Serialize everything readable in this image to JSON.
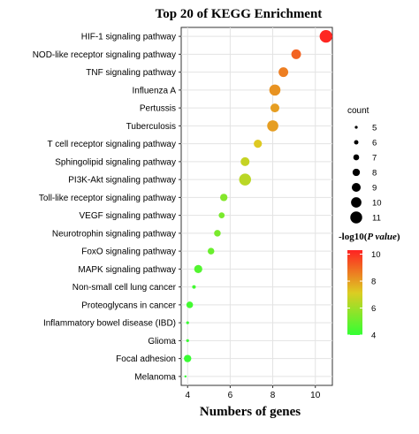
{
  "chart_data": {
    "type": "scatter",
    "title": "Top 20 of KEGG Enrichment",
    "xlabel": "Numbers of genes",
    "ylabel": "",
    "xlim": [
      3.7,
      10.8
    ],
    "xticks": [
      4,
      6,
      8,
      10
    ],
    "grid": true,
    "points": [
      {
        "term": "HIF-1 signaling pathway",
        "count": 10.5,
        "size": 11,
        "log10p": 10.2
      },
      {
        "term": "NOD-like receptor signaling pathway",
        "count": 9.1,
        "size": 9,
        "log10p": 9.1
      },
      {
        "term": "TNF signaling pathway",
        "count": 8.5,
        "size": 9,
        "log10p": 8.6
      },
      {
        "term": "Influenza A",
        "count": 8.1,
        "size": 10,
        "log10p": 8.2
      },
      {
        "term": "Pertussis",
        "count": 8.1,
        "size": 8.5,
        "log10p": 8.0
      },
      {
        "term": "Tuberculosis",
        "count": 8.0,
        "size": 10,
        "log10p": 8.0
      },
      {
        "term": "T cell receptor signaling pathway",
        "count": 7.3,
        "size": 8,
        "log10p": 7.2
      },
      {
        "term": "Sphingolipid signaling pathway",
        "count": 6.7,
        "size": 8.5,
        "log10p": 6.7
      },
      {
        "term": "PI3K-Akt signaling pathway",
        "count": 6.7,
        "size": 10.5,
        "log10p": 6.5
      },
      {
        "term": "Toll-like receptor signaling pathway",
        "count": 5.7,
        "size": 7.5,
        "log10p": 5.5
      },
      {
        "term": "VEGF signaling pathway",
        "count": 5.6,
        "size": 6.5,
        "log10p": 5.3
      },
      {
        "term": "Neurotrophin signaling pathway",
        "count": 5.4,
        "size": 7,
        "log10p": 5.3
      },
      {
        "term": "FoxO signaling pathway",
        "count": 5.1,
        "size": 7,
        "log10p": 5.0
      },
      {
        "term": "MAPK signaling pathway",
        "count": 4.5,
        "size": 8,
        "log10p": 4.6
      },
      {
        "term": "Non-small cell lung cancer",
        "count": 4.3,
        "size": 5,
        "log10p": 4.3
      },
      {
        "term": "Proteoglycans in cancer",
        "count": 4.1,
        "size": 7,
        "log10p": 4.3
      },
      {
        "term": "Inflammatory bowel disease (IBD)",
        "count": 4.0,
        "size": 4.5,
        "log10p": 4.1
      },
      {
        "term": "Glioma",
        "count": 4.0,
        "size": 4.5,
        "log10p": 4.1
      },
      {
        "term": "Focal adhesion",
        "count": 4.0,
        "size": 7.5,
        "log10p": 4.1
      },
      {
        "term": "Melanoma",
        "count": 3.9,
        "size": 4,
        "log10p": 4.0
      }
    ],
    "size_legend": {
      "title": "count",
      "values": [
        5,
        6,
        7,
        8,
        9,
        10,
        11
      ]
    },
    "color_legend": {
      "title_prefix": "-log10(",
      "title_italic": "P value",
      "title_suffix": ")",
      "ticks": [
        4,
        6,
        8,
        10
      ],
      "range": [
        4,
        10.3
      ],
      "low_color": "#33ff33",
      "mid_color": "#ddcc22",
      "high_color": "#ff2222"
    },
    "legend_position": "right"
  }
}
